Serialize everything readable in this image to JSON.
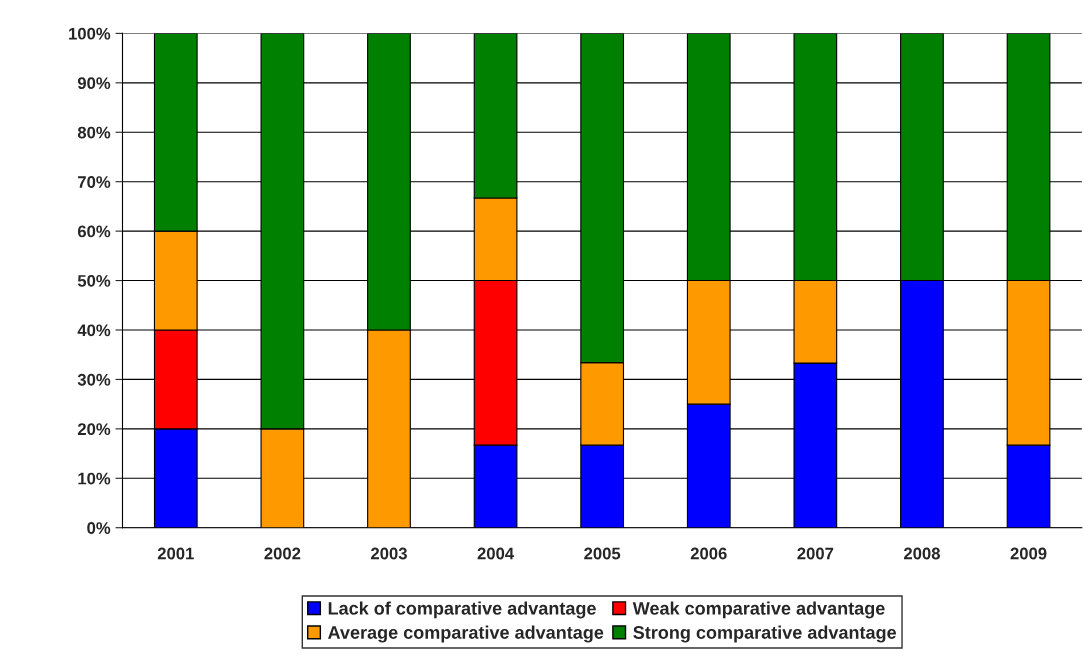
{
  "chart_data": {
    "type": "bar",
    "stacked": true,
    "categories": [
      "2001",
      "2002",
      "2003",
      "2004",
      "2005",
      "2006",
      "2007",
      "2008",
      "2009"
    ],
    "series": [
      {
        "name": "Lack of comparative advantage",
        "color": "#0000ff",
        "values": [
          20,
          0,
          0,
          16.7,
          16.7,
          25,
          33.3,
          50,
          16.7
        ]
      },
      {
        "name": "Weak comparative advantage",
        "color": "#ff0000",
        "values": [
          20,
          0,
          0,
          33.3,
          0,
          0,
          0,
          0,
          0
        ]
      },
      {
        "name": "Average comparative advantage",
        "color": "#ff9900",
        "values": [
          20,
          20,
          40,
          16.7,
          16.7,
          25,
          16.7,
          0,
          33.3
        ]
      },
      {
        "name": "Strong comparative advantage",
        "color": "#008000",
        "values": [
          40,
          80,
          60,
          33.3,
          66.6,
          50,
          50,
          50,
          50
        ]
      }
    ],
    "ylim": [
      0,
      100
    ],
    "yticks": [
      {
        "value": 0,
        "label": "0%"
      },
      {
        "value": 10,
        "label": "10%"
      },
      {
        "value": 20,
        "label": "20%"
      },
      {
        "value": 30,
        "label": "30%"
      },
      {
        "value": 40,
        "label": "40%"
      },
      {
        "value": 50,
        "label": "50%"
      },
      {
        "value": 60,
        "label": "60%"
      },
      {
        "value": 70,
        "label": "70%"
      },
      {
        "value": 80,
        "label": "80%"
      },
      {
        "value": 90,
        "label": "90%"
      },
      {
        "value": 100,
        "label": "100%"
      }
    ],
    "grid": "y",
    "legend": "bottom"
  }
}
